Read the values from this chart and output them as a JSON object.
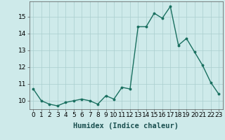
{
  "title": "",
  "xlabel": "Humidex (Indice chaleur)",
  "x": [
    0,
    1,
    2,
    3,
    4,
    5,
    6,
    7,
    8,
    9,
    10,
    11,
    12,
    13,
    14,
    15,
    16,
    17,
    18,
    19,
    20,
    21,
    22,
    23
  ],
  "y": [
    10.7,
    10.0,
    9.8,
    9.7,
    9.9,
    10.0,
    10.1,
    10.0,
    9.8,
    10.3,
    10.1,
    10.8,
    10.7,
    14.4,
    14.4,
    15.2,
    14.9,
    15.6,
    13.3,
    13.7,
    12.9,
    12.1,
    11.1,
    10.4
  ],
  "line_color": "#1a7060",
  "marker": "o",
  "marker_size": 1.8,
  "line_width": 1.0,
  "ylim": [
    9.5,
    15.9
  ],
  "yticks": [
    10,
    11,
    12,
    13,
    14,
    15
  ],
  "xticks": [
    0,
    1,
    2,
    3,
    4,
    5,
    6,
    7,
    8,
    9,
    10,
    11,
    12,
    13,
    14,
    15,
    16,
    17,
    18,
    19,
    20,
    21,
    22,
    23
  ],
  "bg_color": "#ceeaea",
  "grid_color": "#aacece",
  "xlabel_fontsize": 7.5,
  "tick_fontsize": 6.5
}
